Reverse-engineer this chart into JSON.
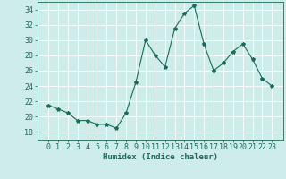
{
  "x": [
    0,
    1,
    2,
    3,
    4,
    5,
    6,
    7,
    8,
    9,
    10,
    11,
    12,
    13,
    14,
    15,
    16,
    17,
    18,
    19,
    20,
    21,
    22,
    23
  ],
  "y": [
    21.5,
    21.0,
    20.5,
    19.5,
    19.5,
    19.0,
    19.0,
    18.5,
    20.5,
    24.5,
    30.0,
    28.0,
    26.5,
    31.5,
    33.5,
    34.5,
    29.5,
    26.0,
    27.0,
    28.5,
    29.5,
    27.5,
    25.0,
    24.0
  ],
  "line_color": "#1a6b5a",
  "marker": "*",
  "marker_size": 3,
  "bg_color": "#ceecea",
  "grid_color": "#ffffff",
  "xlabel": "Humidex (Indice chaleur)",
  "ylim": [
    17,
    35
  ],
  "yticks": [
    18,
    20,
    22,
    24,
    26,
    28,
    30,
    32,
    34
  ],
  "xticks": [
    0,
    1,
    2,
    3,
    4,
    5,
    6,
    7,
    8,
    9,
    10,
    11,
    12,
    13,
    14,
    15,
    16,
    17,
    18,
    19,
    20,
    21,
    22,
    23
  ],
  "xlabel_fontsize": 6.5,
  "tick_fontsize": 6
}
